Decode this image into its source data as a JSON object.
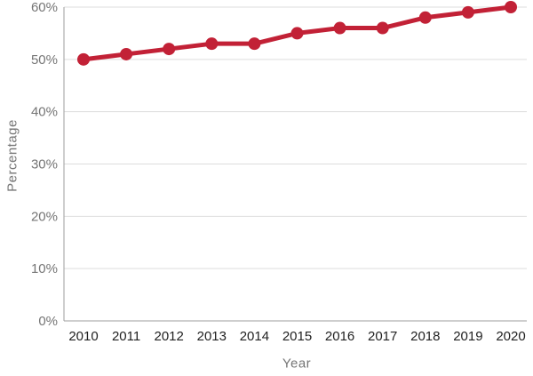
{
  "chart_data": {
    "type": "line",
    "title": "",
    "xlabel": "Year",
    "ylabel": "Percentage",
    "categories": [
      "2010",
      "2011",
      "2012",
      "2013",
      "2014",
      "2015",
      "2016",
      "2017",
      "2018",
      "2019",
      "2020"
    ],
    "series": [
      {
        "name": "Percentage",
        "values": [
          50,
          51,
          52,
          53,
          53,
          55,
          56,
          56,
          58,
          59,
          60
        ],
        "color": "#c22136"
      }
    ],
    "ylim": [
      0,
      60
    ],
    "ytick_step": 10,
    "ytick_labels": [
      "0%",
      "10%",
      "20%",
      "30%",
      "40%",
      "50%",
      "60%"
    ],
    "grid": true,
    "legend_position": "none"
  },
  "colors": {
    "line": "#c22136",
    "grid": "#dddddd",
    "axis": "#9e9e9e",
    "y_tick_label": "#757575",
    "x_tick_label": "#212121",
    "axis_title": "#757575",
    "background": "#ffffff"
  }
}
